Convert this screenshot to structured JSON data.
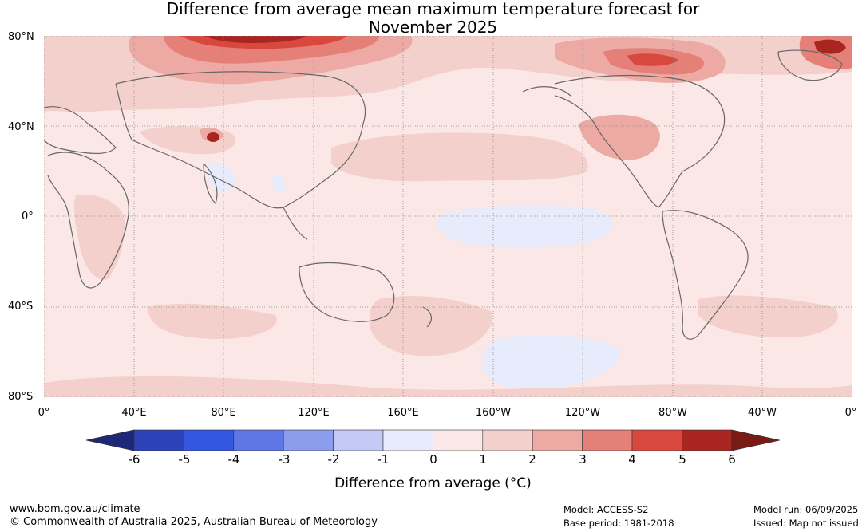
{
  "title_line1": "Difference from average mean maximum temperature forecast for",
  "title_line2": "November 2025",
  "lat_labels": [
    "80°N",
    "40°N",
    "0°",
    "40°S",
    "80°S"
  ],
  "lon_labels": [
    "0°",
    "40°E",
    "80°E",
    "120°E",
    "160°E",
    "160°W",
    "120°W",
    "80°W",
    "40°W",
    "0°"
  ],
  "colorbar": {
    "ticks": [
      "-6",
      "-5",
      "-4",
      "-3",
      "-2",
      "-1",
      "0",
      "1",
      "2",
      "3",
      "4",
      "5",
      "6"
    ],
    "colors": [
      "#1d2878",
      "#2b42b8",
      "#3457e0",
      "#5e77e4",
      "#8c9ded",
      "#c3caf4",
      "#e8ebfb",
      "#fbe8e6",
      "#f3d0cc",
      "#edaaa4",
      "#e58079",
      "#d8483f",
      "#a8261f",
      "#7a1a14"
    ],
    "title": "Difference from average (°C)"
  },
  "footer": {
    "url": "www.bom.gov.au/climate",
    "copyright": "© Commonwealth of Australia 2025, Australian Bureau of Meteorology",
    "model": "Model: ACCESS-S2",
    "base_period": "Base period: 1981-2018",
    "model_run": "Model run: 06/09/2025",
    "issued": "Issued: Map not issued"
  }
}
